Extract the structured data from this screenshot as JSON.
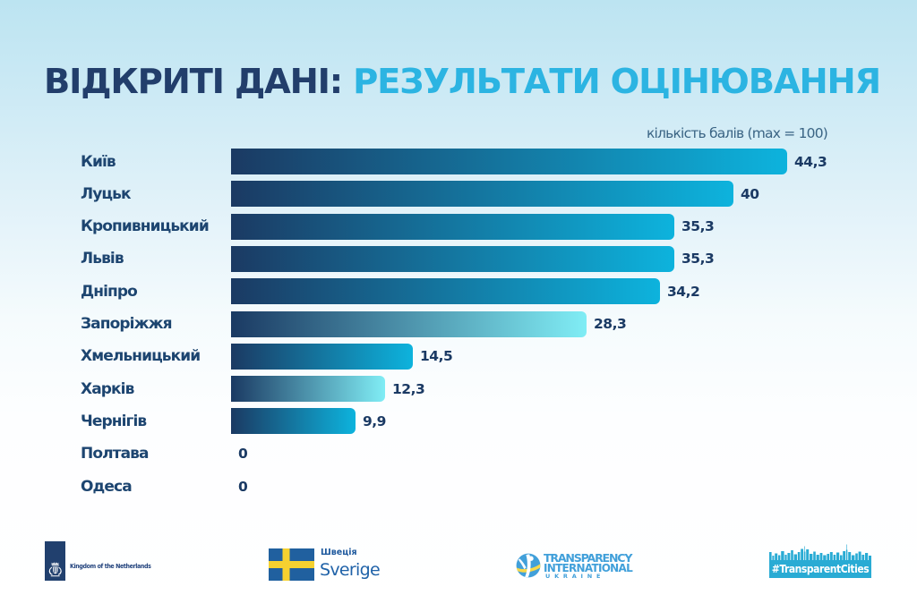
{
  "title": {
    "part1": "ВІДКРИТІ ДАНІ:",
    "part2": " РЕЗУЛЬТАТИ ОЦІНЮВАННЯ"
  },
  "axis_note": "кількість балів (max = 100)",
  "chart_data": {
    "type": "bar",
    "orientation": "horizontal",
    "title": "ВІДКРИТІ ДАНІ: РЕЗУЛЬТАТИ ОЦІНЮВАННЯ",
    "note": "кількість балів (max = 100)",
    "max_score": 100,
    "categories": [
      "Київ",
      "Луцьк",
      "Кропивницький",
      "Львів",
      "Дніпро",
      "Запоріжжя",
      "Хмельницький",
      "Харків",
      "Чернігів",
      "Полтава",
      "Одеса"
    ],
    "values": [
      44.3,
      40,
      35.3,
      35.3,
      34.2,
      28.3,
      14.5,
      12.3,
      9.9,
      0,
      0
    ],
    "value_labels": [
      "44,3",
      "40",
      "35,3",
      "35,3",
      "34,2",
      "28,3",
      "14,5",
      "12,3",
      "9,9",
      "0",
      "0"
    ],
    "bar_gradients": [
      "cyan",
      "cyan",
      "cyan",
      "cyan",
      "cyan",
      "light",
      "cyan",
      "light",
      "cyan",
      "cyan",
      "cyan"
    ],
    "colors": {
      "bar_dark": "#1b3a63",
      "bar_cyan": "#0db3dd",
      "bar_light": "#80edf5"
    }
  },
  "footer": {
    "netherlands": {
      "label": "Kingdom of the Netherlands"
    },
    "sweden": {
      "line1": "Швеція",
      "line2": "Sverige"
    },
    "transparency": {
      "line1": "TRANSPARENCY",
      "line2": "INTERNATIONAL",
      "line3": "UKRAINE"
    },
    "transparent_cities": {
      "label": "#TransparentCities"
    }
  }
}
